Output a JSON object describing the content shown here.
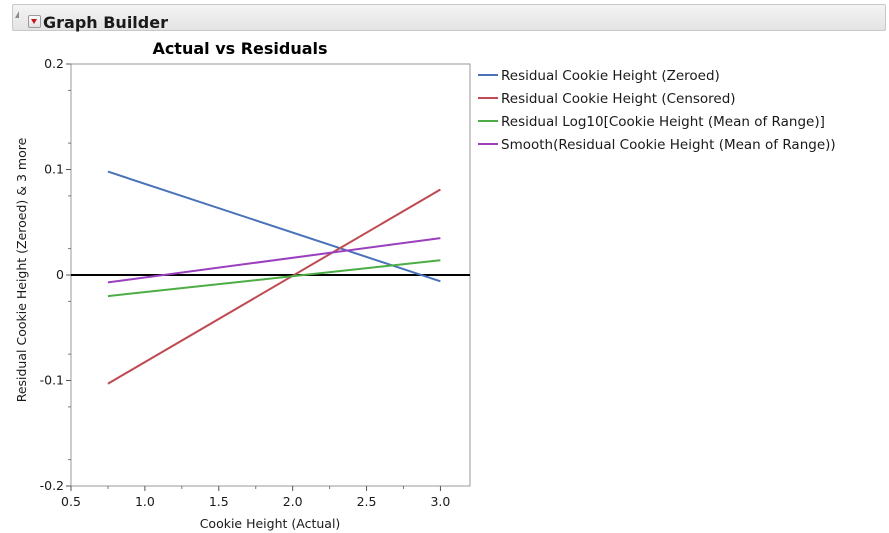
{
  "panel": {
    "title": "Graph Builder",
    "icons": {
      "collapse": "disclosure-triangle-icon",
      "menu": "red-triangle-menu-icon"
    }
  },
  "chart_data": {
    "type": "line",
    "title": "Actual vs Residuals",
    "xlabel": "Cookie Height (Actual)",
    "ylabel": "Residual Cookie Height (Zeroed) & 3 more",
    "xlim": [
      0.5,
      3.2
    ],
    "ylim": [
      -0.2,
      0.2
    ],
    "xticks": [
      0.5,
      1.0,
      1.5,
      2.0,
      2.5,
      3.0
    ],
    "xtick_labels": [
      "0.5",
      "1.0",
      "1.5",
      "2.0",
      "2.5",
      "3.0"
    ],
    "yticks": [
      -0.2,
      -0.1,
      0,
      0.1,
      0.2
    ],
    "ytick_labels": [
      "-0.2",
      "-0.1",
      "0",
      "0.1",
      "0.2"
    ],
    "reference_line": {
      "y": 0,
      "color": "#000000"
    },
    "grid": false,
    "legend_position": "right",
    "series": [
      {
        "name": "Residual Cookie Height (Zeroed)",
        "color": "#4a72b8",
        "x": [
          0.75,
          3.0
        ],
        "y": [
          0.098,
          -0.006
        ]
      },
      {
        "name": "Residual Cookie Height (Censored)",
        "color": "#c04a52",
        "x": [
          0.75,
          3.0
        ],
        "y": [
          -0.103,
          0.081
        ]
      },
      {
        "name": "Residual Log10[Cookie Height (Mean of Range)]",
        "color": "#4cad45",
        "x": [
          0.75,
          3.0
        ],
        "y": [
          -0.02,
          0.014
        ]
      },
      {
        "name": "Smooth(Residual Cookie Height (Mean of Range))",
        "color": "#9b3fbf",
        "x": [
          0.75,
          3.0
        ],
        "y": [
          -0.007,
          0.035
        ]
      }
    ]
  }
}
